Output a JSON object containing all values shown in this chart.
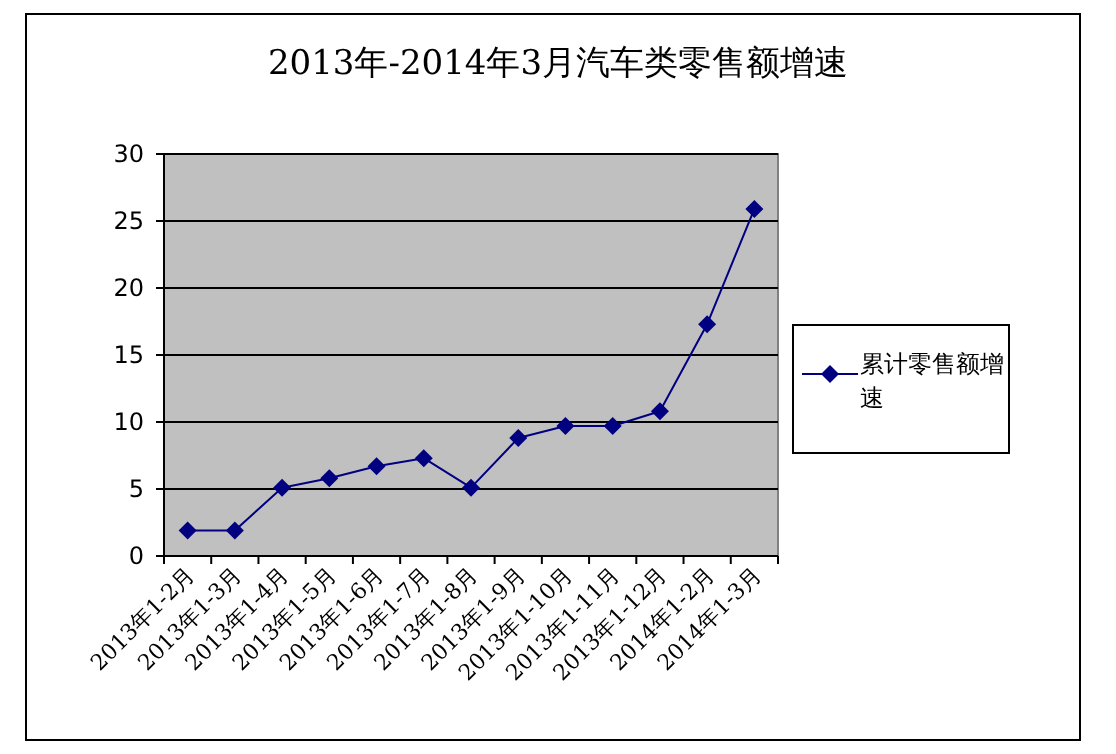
{
  "chart_data": {
    "type": "line",
    "title": "2013年-2014年3月汽车类零售额增速",
    "categories": [
      "2013年1-2月",
      "2013年1-3月",
      "2013年1-4月",
      "2013年1-5月",
      "2013年1-6月",
      "2013年1-7月",
      "2013年1-8月",
      "2013年1-9月",
      "2013年1-10月",
      "2013年1-11月",
      "2013年1-12月",
      "2014年1-2月",
      "2014年1-3月"
    ],
    "series": [
      {
        "name": "累计零售额增速",
        "color": "#000080",
        "values": [
          1.9,
          1.9,
          5.1,
          5.8,
          6.7,
          7.3,
          5.1,
          8.8,
          9.7,
          9.7,
          10.8,
          17.3,
          25.9
        ]
      }
    ],
    "ylim": [
      0,
      30
    ],
    "yticks": [
      0,
      5,
      10,
      15,
      20,
      25,
      30
    ],
    "grid": "y",
    "legend": "right",
    "marker": "diamond",
    "line_style": "solid"
  }
}
